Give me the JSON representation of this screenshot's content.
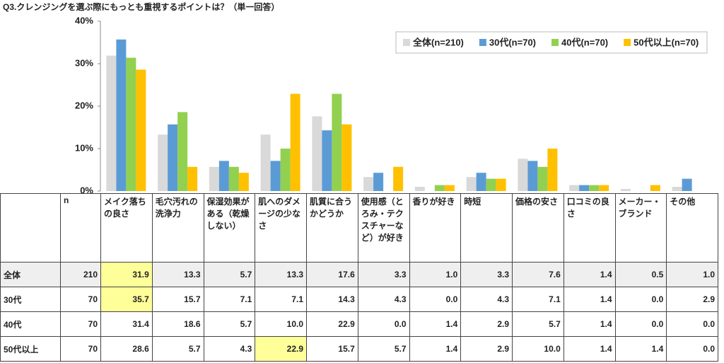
{
  "chart_data": {
    "type": "bar",
    "title": "Q3.クレンジングを選ぶ際にもっとも重視するポイントは？（単一回答）",
    "categories": [
      "メイク落ちの良さ",
      "毛穴汚れの洗浄力",
      "保湿効果がある（乾燥しない）",
      "肌へのダメージの少なさ",
      "肌質に合うかどうか",
      "使用感（とろみ・テクスチャーなど）が好き",
      "香りが好き",
      "時短",
      "価格の安さ",
      "口コミの良さ",
      "メーカー・ブランド",
      "その他"
    ],
    "n_header": "n",
    "series": [
      {
        "name": "全体(n=210)",
        "row_label": "全体",
        "n": 210,
        "color": "#d9d9d9",
        "values": [
          31.9,
          13.3,
          5.7,
          13.3,
          17.6,
          3.3,
          1.0,
          3.3,
          7.6,
          1.4,
          0.5,
          1.0
        ],
        "value_labels": [
          "31.9",
          "13.3",
          "5.7",
          "13.3",
          "17.6",
          "3.3",
          "1.0",
          "3.3",
          "7.6",
          "1.4",
          "0.5",
          "1.0"
        ],
        "highlighted": [
          0
        ]
      },
      {
        "name": "30代(n=70)",
        "row_label": "30代",
        "n": 70,
        "color": "#5b9bd5",
        "values": [
          35.7,
          15.7,
          7.1,
          7.1,
          14.3,
          4.3,
          0.0,
          4.3,
          7.1,
          1.4,
          0.0,
          2.9
        ],
        "value_labels": [
          "35.7",
          "15.7",
          "7.1",
          "7.1",
          "14.3",
          "4.3",
          "0.0",
          "4.3",
          "7.1",
          "1.4",
          "0.0",
          "2.9"
        ],
        "highlighted": [
          0
        ]
      },
      {
        "name": "40代(n=70)",
        "row_label": "40代",
        "n": 70,
        "color": "#92d050",
        "values": [
          31.4,
          18.6,
          5.7,
          10.0,
          22.9,
          0.0,
          1.4,
          2.9,
          5.7,
          1.4,
          0.0,
          0.0
        ],
        "value_labels": [
          "31.4",
          "18.6",
          "5.7",
          "10.0",
          "22.9",
          "0.0",
          "1.4",
          "2.9",
          "5.7",
          "1.4",
          "0.0",
          "0.0"
        ],
        "highlighted": []
      },
      {
        "name": "50代以上(n=70)",
        "row_label": "50代以上",
        "n": 70,
        "color": "#ffc000",
        "values": [
          28.6,
          5.7,
          4.3,
          22.9,
          15.7,
          5.7,
          1.4,
          2.9,
          10.0,
          1.4,
          1.4,
          0.0
        ],
        "value_labels": [
          "28.6",
          "5.7",
          "4.3",
          "22.9",
          "15.7",
          "5.7",
          "1.4",
          "2.9",
          "10.0",
          "1.4",
          "1.4",
          "0.0"
        ],
        "highlighted": [
          3
        ]
      }
    ],
    "ylim": [
      0,
      40
    ],
    "yticks": [
      {
        "value": 0,
        "label": "0%"
      },
      {
        "value": 10,
        "label": "10%"
      },
      {
        "value": 20,
        "label": "20%"
      },
      {
        "value": 30,
        "label": "30%"
      },
      {
        "value": 40,
        "label": "40%"
      }
    ],
    "legend": "top-right"
  }
}
